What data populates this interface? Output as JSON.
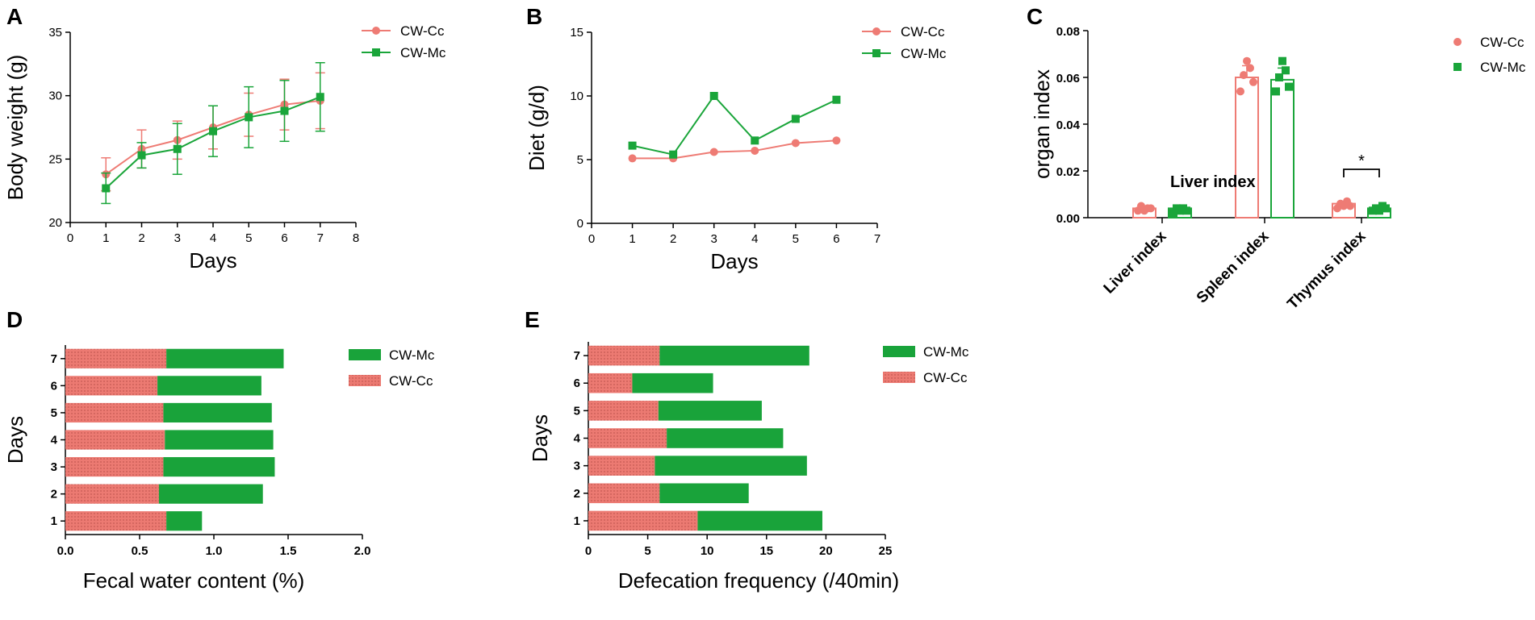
{
  "colors": {
    "cc": "#ee7b74",
    "mc": "#1aa53a",
    "cc_bar": "#ec7a72",
    "mc_bar": "#19a33a",
    "axis": "#000000"
  },
  "chart_data": [
    {
      "panel": "A",
      "type": "line",
      "xlabel": "Days",
      "ylabel": "Body weight (g)",
      "xlim": [
        0,
        8
      ],
      "ylim": [
        20,
        35
      ],
      "xticks": [
        "0",
        "1",
        "2",
        "3",
        "4",
        "5",
        "6",
        "7",
        "8"
      ],
      "yticks": [
        "20",
        "25",
        "30",
        "35"
      ],
      "x": [
        1,
        2,
        3,
        4,
        5,
        6,
        7
      ],
      "series": [
        {
          "name": "CW-Cc",
          "values": [
            23.8,
            25.8,
            26.5,
            27.5,
            28.5,
            29.3,
            29.6
          ],
          "errors": [
            1.3,
            1.5,
            1.5,
            1.7,
            1.7,
            2.0,
            2.2
          ]
        },
        {
          "name": "CW-Mc",
          "values": [
            22.7,
            25.3,
            25.8,
            27.2,
            28.3,
            28.8,
            29.9
          ],
          "errors": [
            1.2,
            1.0,
            2.0,
            2.0,
            2.4,
            2.4,
            2.7
          ]
        }
      ],
      "legend": "top-right"
    },
    {
      "panel": "B",
      "type": "line",
      "xlabel": "Days",
      "ylabel": "Diet (g/d)",
      "xlim": [
        0,
        7
      ],
      "ylim": [
        0,
        15
      ],
      "xticks": [
        "0",
        "1",
        "2",
        "3",
        "4",
        "5",
        "6",
        "7"
      ],
      "yticks": [
        "0",
        "5",
        "10",
        "15"
      ],
      "x": [
        1,
        2,
        3,
        4,
        5,
        6
      ],
      "series": [
        {
          "name": "CW-Cc",
          "values": [
            5.1,
            5.1,
            5.6,
            5.7,
            6.3,
            6.5
          ]
        },
        {
          "name": "CW-Mc",
          "values": [
            6.1,
            5.4,
            10.0,
            6.5,
            8.2,
            9.7
          ]
        }
      ],
      "legend": "top-right"
    },
    {
      "panel": "C",
      "type": "bar",
      "ylabel": "organ index",
      "ylim": [
        0,
        0.08
      ],
      "yticks": [
        "0.00",
        "0.02",
        "0.04",
        "0.06",
        "0.08"
      ],
      "categories": [
        "Liver index",
        "Spleen index",
        "Thymus index"
      ],
      "annotation": "Liver index",
      "significance": {
        "category": "Thymus index",
        "label": "*"
      },
      "series": [
        {
          "name": "CW-Cc",
          "values": [
            0.004,
            0.06,
            0.006
          ],
          "errors": [
            0.001,
            0.005,
            0.001
          ],
          "points": [
            [
              0.003,
              0.004,
              0.005,
              0.004,
              0.003
            ],
            [
              0.054,
              0.058,
              0.061,
              0.064,
              0.067
            ],
            [
              0.004,
              0.005,
              0.006,
              0.007,
              0.005
            ]
          ]
        },
        {
          "name": "CW-Mc",
          "values": [
            0.004,
            0.059,
            0.004
          ],
          "errors": [
            0.001,
            0.005,
            0.001
          ],
          "points": [
            [
              0.002,
              0.003,
              0.004,
              0.004,
              0.003
            ],
            [
              0.054,
              0.056,
              0.06,
              0.063,
              0.067
            ],
            [
              0.003,
              0.004,
              0.004,
              0.005,
              0.003
            ]
          ]
        }
      ],
      "legend": "top-right"
    },
    {
      "panel": "D",
      "type": "bar",
      "orientation": "horizontal",
      "stacked": true,
      "xlabel": "Fecal water content (%)",
      "ylabel": "Days",
      "xlim": [
        0,
        2.0
      ],
      "xticks": [
        "0.0",
        "0.5",
        "1.0",
        "1.5",
        "2.0"
      ],
      "categories": [
        "1",
        "2",
        "3",
        "4",
        "5",
        "6",
        "7"
      ],
      "series": [
        {
          "name": "CW-Cc",
          "values": [
            0.68,
            0.63,
            0.66,
            0.67,
            0.66,
            0.62,
            0.68
          ]
        },
        {
          "name": "CW-Mc",
          "values": [
            0.24,
            0.7,
            0.75,
            0.73,
            0.73,
            0.7,
            0.79
          ]
        }
      ],
      "legend": "top-right"
    },
    {
      "panel": "E",
      "type": "bar",
      "orientation": "horizontal",
      "stacked": true,
      "xlabel": "Defecation frequency (/40min)",
      "ylabel": "Days",
      "xlim": [
        0,
        25
      ],
      "xticks": [
        "0",
        "5",
        "10",
        "15",
        "20",
        "25"
      ],
      "categories": [
        "1",
        "2",
        "3",
        "4",
        "5",
        "6",
        "7"
      ],
      "series": [
        {
          "name": "CW-Cc",
          "values": [
            9.2,
            6.0,
            5.6,
            6.6,
            5.9,
            3.7,
            6.0
          ]
        },
        {
          "name": "CW-Mc",
          "values": [
            10.5,
            7.5,
            12.8,
            9.8,
            8.7,
            6.8,
            12.6
          ]
        }
      ],
      "legend": "top-right"
    }
  ]
}
